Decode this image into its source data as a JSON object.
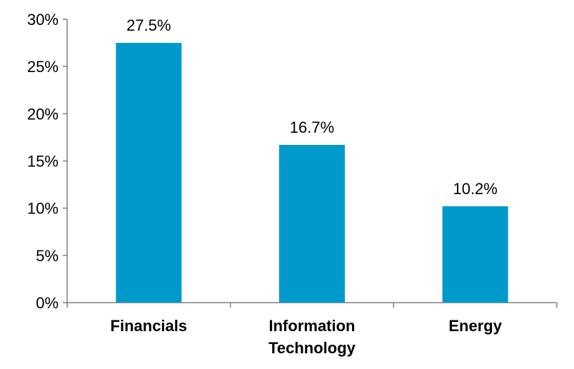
{
  "chart_data": {
    "type": "bar",
    "categories": [
      "Financials",
      "Information Technology",
      "Energy"
    ],
    "category_lines": [
      [
        "Financials"
      ],
      [
        "Information",
        "Technology"
      ],
      [
        "Energy"
      ]
    ],
    "values": [
      27.5,
      16.7,
      10.2
    ],
    "data_labels": [
      "27.5%",
      "16.7%",
      "10.2%"
    ],
    "title": "",
    "xlabel": "",
    "ylabel": "",
    "ylim": [
      0,
      30
    ],
    "yticks": [
      0,
      5,
      10,
      15,
      20,
      25,
      30
    ],
    "ytick_labels": [
      "0%",
      "5%",
      "10%",
      "15%",
      "20%",
      "25%",
      "30%"
    ],
    "grid": false,
    "legend": "none",
    "bar_color": "#0099CC",
    "axis_color": "#808080"
  }
}
